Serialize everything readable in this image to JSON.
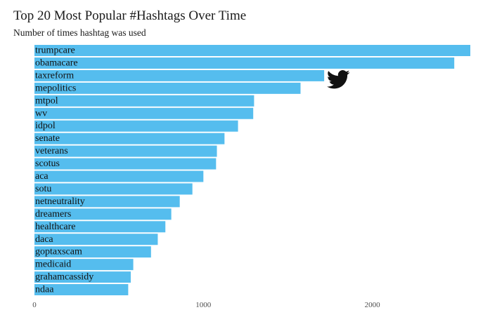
{
  "chart_data": {
    "type": "bar",
    "orientation": "horizontal",
    "title": "Top 20 Most Popular #Hashtags Over Time",
    "subtitle": "Number of times hashtag was used",
    "categories": [
      "trumpcare",
      "obamacare",
      "taxreform",
      "mepolitics",
      "mtpol",
      "wv",
      "idpol",
      "senate",
      "veterans",
      "scotus",
      "aca",
      "sotu",
      "netneutrality",
      "dreamers",
      "healthcare",
      "daca",
      "goptaxscam",
      "medicaid",
      "grahamcassidy",
      "ndaa"
    ],
    "values": [
      2580,
      2485,
      1715,
      1575,
      1300,
      1295,
      1205,
      1125,
      1080,
      1075,
      1000,
      935,
      860,
      810,
      775,
      730,
      690,
      585,
      570,
      555
    ],
    "xlim": [
      0,
      2580
    ],
    "xticks": [
      0,
      1000,
      2000
    ],
    "xtick_labels": [
      "0",
      "1000",
      "2000"
    ],
    "grid": false,
    "bar_color": "#55bdee",
    "label_position": "inside-left",
    "icon": "twitter-bird-icon",
    "icon_color": "#111111"
  }
}
